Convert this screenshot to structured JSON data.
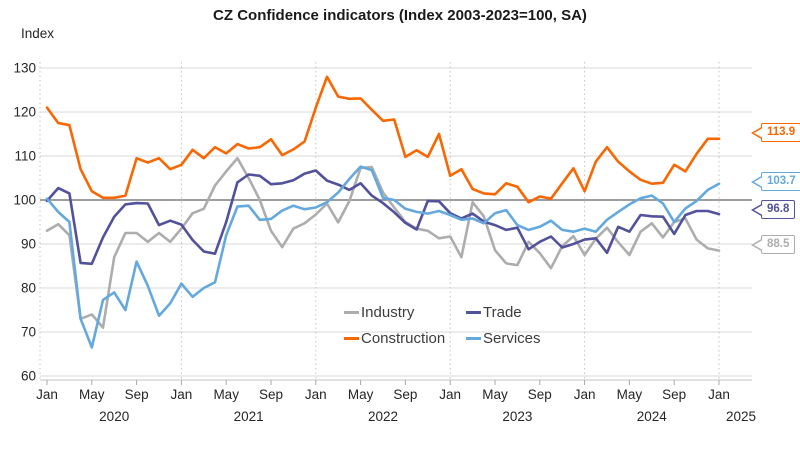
{
  "title": "CZ Confidence indicators (Index 2003-2023=100, SA)",
  "ylabel": "Index",
  "chart_data": {
    "type": "line",
    "title": "CZ Confidence indicators (Index 2003-2023=100, SA)",
    "xlabel": "",
    "ylabel": "Index",
    "x_start": "2020-01",
    "x_end": "2025-01",
    "x_months_per_point": 1,
    "x_tick_month_labels": [
      "Jan",
      "May",
      "Sep"
    ],
    "x_year_labels": [
      "2020",
      "2021",
      "2022",
      "2023",
      "2024",
      "2025"
    ],
    "ylim": [
      60,
      130
    ],
    "yticks": [
      60,
      70,
      80,
      90,
      100,
      110,
      120,
      130
    ],
    "baseline_value": 100,
    "grid": true,
    "legend_position": "inside-bottom-center",
    "series": [
      {
        "name": "Industry",
        "color": "#adadad",
        "end_label": "88.5",
        "values": [
          93,
          94.5,
          92,
          73,
          74,
          71,
          87,
          92.5,
          92.5,
          90.5,
          92.5,
          90.5,
          93.5,
          97,
          98,
          103.3,
          106.5,
          109.5,
          105,
          100,
          93,
          89.3,
          93.5,
          94.7,
          96.7,
          99.2,
          94.9,
          99.8,
          107.3,
          107.5,
          101.7,
          98.3,
          95,
          93.5,
          93,
          91.3,
          91.7,
          87,
          99.5,
          96.3,
          88.6,
          85.6,
          85.2,
          90.5,
          87.9,
          84.5,
          89.5,
          91.8,
          87.5,
          91.2,
          93.7,
          90.4,
          87.5,
          92.8,
          94.7,
          91.5,
          95,
          95.8,
          91,
          89,
          88.5
        ]
      },
      {
        "name": "Construction",
        "color": "#f96702",
        "end_label": "113.9",
        "values": [
          121,
          117.5,
          117,
          107,
          102,
          100.5,
          100.5,
          101,
          109.5,
          108.5,
          109.5,
          107,
          108,
          111.4,
          109.5,
          112,
          110.6,
          112.7,
          111.7,
          112,
          113.8,
          110.2,
          111.5,
          113.3,
          121,
          128,
          123.5,
          123,
          123.1,
          120.5,
          118,
          118.3,
          109.8,
          111.3,
          109.8,
          115,
          105.5,
          107,
          102.5,
          101.5,
          101.3,
          103.8,
          103,
          99.5,
          100.8,
          100.3,
          103.8,
          107.2,
          102,
          108.7,
          112,
          108.7,
          106.5,
          104.6,
          103.7,
          103.9,
          108,
          106.5,
          110.5,
          113.9,
          113.9
        ]
      },
      {
        "name": "Trade",
        "color": "#52519b",
        "end_label": "96.8",
        "values": [
          99.8,
          102.7,
          101.5,
          85.7,
          85.5,
          91.5,
          96.2,
          99,
          99.3,
          99.2,
          94.3,
          95.3,
          94.4,
          90.9,
          88.3,
          87.8,
          95,
          104,
          105.8,
          105.5,
          103.6,
          103.8,
          104.5,
          106,
          106.7,
          104.4,
          103.5,
          102.3,
          103.8,
          101,
          99.3,
          97.2,
          94.8,
          93.3,
          99.8,
          99.7,
          97,
          95.8,
          96.9,
          95.1,
          94.3,
          93.2,
          93.7,
          88.8,
          90.5,
          91.7,
          89.2,
          90,
          91,
          91.3,
          88,
          93.9,
          92.8,
          96.6,
          96.3,
          96.2,
          92.3,
          96.6,
          97.5,
          97.5,
          96.8
        ]
      },
      {
        "name": "Services",
        "color": "#64a9de",
        "end_label": "103.7",
        "values": [
          100.3,
          97.3,
          95,
          73,
          66.5,
          77.3,
          79,
          75,
          86,
          80.5,
          73.7,
          76.5,
          81,
          78,
          80,
          81.3,
          92,
          98.5,
          98.7,
          95.5,
          95.7,
          97.6,
          98.7,
          97.9,
          98.3,
          99.5,
          101.7,
          104.8,
          107.6,
          106.8,
          100.5,
          100,
          98,
          97.3,
          96.9,
          97.5,
          96.6,
          95.5,
          95.8,
          94.7,
          97,
          97.7,
          94.3,
          93.2,
          93.9,
          95.3,
          93.2,
          92.8,
          93.5,
          92.8,
          95.5,
          97.3,
          99,
          100.4,
          101,
          99.2,
          95,
          98.1,
          99.8,
          102.3,
          103.7
        ]
      }
    ],
    "end_value_callouts": [
      "113.9",
      "103.7",
      "96.8",
      "88.5"
    ]
  },
  "legend": {
    "order_note": "two columns: Industry/Construction left, Trade/Services right"
  }
}
